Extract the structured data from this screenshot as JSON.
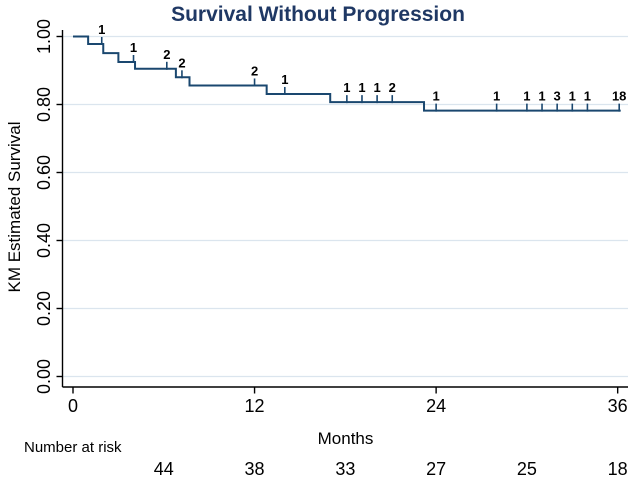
{
  "chart_data": {
    "type": "line",
    "subtype": "kaplan-meier-step",
    "title": "Survival Without Progression",
    "xlabel": "Months",
    "ylabel": "KM Estimated Survival",
    "xlim": [
      0,
      36.6
    ],
    "ylim": [
      0.0,
      1.0
    ],
    "grid": true,
    "x_ticks": [
      {
        "value": 0,
        "label": "0"
      },
      {
        "value": 12,
        "label": "12"
      },
      {
        "value": 24,
        "label": "24"
      },
      {
        "value": 36,
        "label": "36"
      }
    ],
    "y_ticks": [
      {
        "value": 1.0,
        "label": "1.00"
      },
      {
        "value": 0.8,
        "label": "0.80"
      },
      {
        "value": 0.6,
        "label": "0.60"
      },
      {
        "value": 0.4,
        "label": "0.40"
      },
      {
        "value": 0.2,
        "label": "0.20"
      },
      {
        "value": 0.0,
        "label": "0.00"
      }
    ],
    "survival_steps": [
      {
        "t": 0.0,
        "s": 1.0
      },
      {
        "t": 1.0,
        "s": 0.978
      },
      {
        "t": 2.0,
        "s": 0.951
      },
      {
        "t": 3.0,
        "s": 0.925
      },
      {
        "t": 4.1,
        "s": 0.905
      },
      {
        "t": 6.8,
        "s": 0.88
      },
      {
        "t": 7.7,
        "s": 0.856
      },
      {
        "t": 12.8,
        "s": 0.831
      },
      {
        "t": 17.0,
        "s": 0.807
      },
      {
        "t": 23.2,
        "s": 0.782
      }
    ],
    "curve_end_t": 36.2,
    "censor_marks": [
      {
        "t": 1.9,
        "s": 0.978,
        "label": "1"
      },
      {
        "t": 4.0,
        "s": 0.925,
        "label": "1"
      },
      {
        "t": 6.2,
        "s": 0.905,
        "label": "2"
      },
      {
        "t": 7.2,
        "s": 0.88,
        "label": "2"
      },
      {
        "t": 12.0,
        "s": 0.856,
        "label": "2"
      },
      {
        "t": 14.0,
        "s": 0.831,
        "label": "1"
      },
      {
        "t": 18.1,
        "s": 0.807,
        "label": "1"
      },
      {
        "t": 19.1,
        "s": 0.807,
        "label": "1"
      },
      {
        "t": 20.1,
        "s": 0.807,
        "label": "1"
      },
      {
        "t": 21.1,
        "s": 0.807,
        "label": "2"
      },
      {
        "t": 24.0,
        "s": 0.782,
        "label": "1"
      },
      {
        "t": 28.0,
        "s": 0.782,
        "label": "1"
      },
      {
        "t": 30.0,
        "s": 0.782,
        "label": "1"
      },
      {
        "t": 31.0,
        "s": 0.782,
        "label": "1"
      },
      {
        "t": 32.0,
        "s": 0.782,
        "label": "3"
      },
      {
        "t": 33.0,
        "s": 0.782,
        "label": "1"
      },
      {
        "t": 34.0,
        "s": 0.782,
        "label": "1"
      },
      {
        "t": 36.1,
        "s": 0.782,
        "label": "18"
      }
    ],
    "risk_table": {
      "label": "Number at risk",
      "months": [
        6,
        12,
        18,
        24,
        30,
        36
      ],
      "values": [
        "44",
        "38",
        "33",
        "27",
        "25",
        "18"
      ]
    },
    "legend_position": "none"
  },
  "colors": {
    "title": "#1f3864",
    "curve": "#1a476f",
    "grid": "#dbe5ee",
    "axis": "#000000",
    "background": "#ffffff"
  }
}
